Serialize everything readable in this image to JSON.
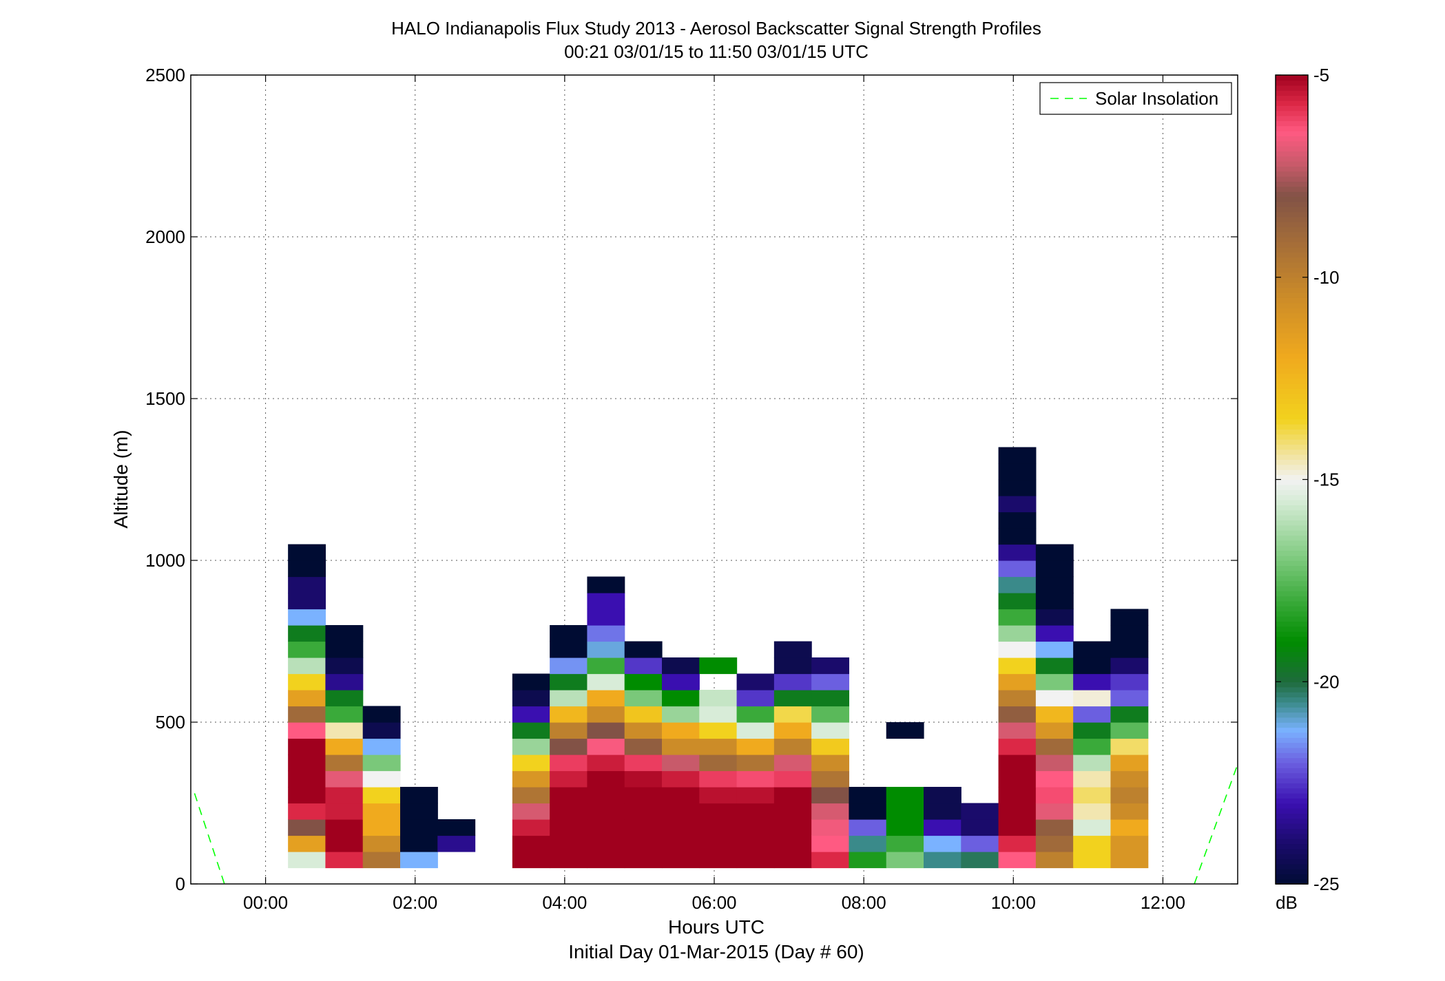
{
  "chart_data": {
    "type": "heatmap",
    "title": "HALO Indianapolis Flux Study 2013 - Aerosol Backscatter Signal Strength Profiles",
    "subtitle": "00:21 03/01/15 to 11:50 03/01/15  UTC",
    "xlabel": "Hours UTC",
    "xlabel2": "Initial Day 01-Mar-2015 (Day # 60)",
    "ylabel": "Altitude (m)",
    "xlim": [
      -1.0,
      13.0
    ],
    "ylim": [
      0,
      2500
    ],
    "x_ticks": [
      0,
      2,
      4,
      6,
      8,
      10,
      12
    ],
    "x_tick_labels": [
      "00:00",
      "02:00",
      "04:00",
      "06:00",
      "08:00",
      "10:00",
      "12:00"
    ],
    "y_ticks": [
      0,
      500,
      1000,
      1500,
      2000,
      2500
    ],
    "y_tick_labels": [
      "0",
      "500",
      "1000",
      "1500",
      "2000",
      "2500"
    ],
    "grid": true,
    "legend_position": "top-right",
    "legend": [
      {
        "name": "Solar Insolation",
        "color": "#00ff00",
        "style": "dashed"
      }
    ],
    "colorbar": {
      "label": "dB",
      "range": [
        -25,
        -5
      ],
      "ticks": [
        -5,
        -10,
        -15,
        -20,
        -25
      ],
      "tick_labels": [
        "-5",
        "-10",
        "-15",
        "-20",
        "-25"
      ],
      "stops": [
        {
          "value": -25,
          "color": "#000c33"
        },
        {
          "value": -24,
          "color": "#1a0b6b"
        },
        {
          "value": -23,
          "color": "#3a0fb0"
        },
        {
          "value": -22,
          "color": "#6b5fe0"
        },
        {
          "value": -21.2,
          "color": "#7ab2ff"
        },
        {
          "value": -20.5,
          "color": "#3a8a8a"
        },
        {
          "value": -20,
          "color": "#1e6b3c"
        },
        {
          "value": -19,
          "color": "#008c00"
        },
        {
          "value": -18,
          "color": "#3aaa3a"
        },
        {
          "value": -17,
          "color": "#7ac87a"
        },
        {
          "value": -15.5,
          "color": "#d8ecd8"
        },
        {
          "value": -15,
          "color": "#f2f2f2"
        },
        {
          "value": -14.5,
          "color": "#f2e6b0"
        },
        {
          "value": -13.5,
          "color": "#f2d21e"
        },
        {
          "value": -12,
          "color": "#f0aa1e"
        },
        {
          "value": -10.5,
          "color": "#cc8c28"
        },
        {
          "value": -9,
          "color": "#a06a3a"
        },
        {
          "value": -8,
          "color": "#825246"
        },
        {
          "value": -7.2,
          "color": "#c85a6a"
        },
        {
          "value": -6.4,
          "color": "#ff5a82"
        },
        {
          "value": -5.7,
          "color": "#dc2846"
        },
        {
          "value": -5,
          "color": "#a0001e"
        }
      ]
    },
    "solar_insolation": [
      {
        "x": [
          -0.95,
          -0.55
        ],
        "y": [
          280,
          0
        ]
      },
      {
        "x": [
          12.42,
          13.0
        ],
        "y": [
          0,
          370
        ]
      }
    ],
    "bin_width_hours": 0.5,
    "bin_height_m": 50,
    "profiles": [
      {
        "x": 0.55,
        "y0": 50,
        "values": [
          -15.5,
          -11.5,
          -8,
          -5.7,
          -5,
          -5,
          -5,
          -5,
          -6.4,
          -9,
          -11.5,
          -13.5,
          -16,
          -18,
          -19.5,
          -21.2,
          -24,
          -24,
          -25,
          -25
        ]
      },
      {
        "x": 1.05,
        "y0": 50,
        "values": [
          -5.7,
          -5,
          -5,
          -5.5,
          -5.5,
          -6.8,
          -9.5,
          -12,
          -14.5,
          -18,
          -19.5,
          -23.5,
          -24.5,
          -25,
          -25
        ]
      },
      {
        "x": 1.55,
        "y0": 50,
        "values": [
          -9.5,
          -10.5,
          -12,
          -12,
          -13.5,
          -15,
          -17,
          -21.2,
          -24.5,
          -25
        ]
      },
      {
        "x": 2.05,
        "y0": 50,
        "values": [
          -21.2,
          -25,
          -25,
          -25,
          -25
        ]
      },
      {
        "x": 2.55,
        "y0": 100,
        "values": [
          -23.5,
          -25
        ]
      },
      {
        "x": 3.55,
        "y0": 50,
        "values": [
          -5,
          -5,
          -5.5,
          -7,
          -9.5,
          -11,
          -13.5,
          -16.5,
          -19.5,
          -23,
          -24.5,
          -25
        ]
      },
      {
        "x": 4.05,
        "y0": 50,
        "values": [
          -5,
          -5,
          -5,
          -5,
          -5,
          -5.5,
          -6,
          -8,
          -10,
          -12.5,
          -16,
          -19.5,
          -21.5,
          -25,
          -25
        ]
      },
      {
        "x": 4.55,
        "y0": 50,
        "values": [
          -5,
          -5,
          -5,
          -5,
          -5,
          -5,
          -5.5,
          -6.5,
          -8,
          -10.5,
          -12,
          -15.5,
          -18,
          -21,
          -21.8,
          -23,
          -23,
          -25
        ]
      },
      {
        "x": 5.05,
        "y0": 50,
        "values": [
          -5,
          -5,
          -5,
          -5,
          -5,
          -5.2,
          -6,
          -8.5,
          -10.5,
          -13,
          -17,
          -19,
          -22.5,
          -25
        ]
      },
      {
        "x": 5.55,
        "y0": 50,
        "values": [
          -5,
          -5,
          -5,
          -5,
          -5,
          -5.5,
          -7.2,
          -10.5,
          -12,
          -16.5,
          -19,
          -23,
          -24.5
        ]
      },
      {
        "x": 6.05,
        "y0": 50,
        "values": [
          -5,
          -5,
          -5,
          -5,
          -5.3,
          -6,
          -9,
          -10.5,
          -13.5,
          -15.5,
          -15.8,
          null,
          -19
        ]
      },
      {
        "x": 6.55,
        "y0": 50,
        "values": [
          -5,
          -5,
          -5,
          -5,
          -5.3,
          -6.2,
          -9.5,
          -12,
          -15.5,
          -18,
          -22.5,
          -24
        ]
      },
      {
        "x": 7.05,
        "y0": 50,
        "values": [
          -5,
          -5,
          -5,
          -5,
          -5,
          -6,
          -7,
          -10,
          -12,
          -13.8,
          -19.5,
          -22.5,
          -24.5,
          -24.5
        ]
      },
      {
        "x": 7.55,
        "y0": 50,
        "values": [
          -5.7,
          -6.4,
          -6.6,
          -7,
          -8,
          -9.5,
          -10.5,
          -13.2,
          -15.5,
          -17.5,
          -19.5,
          -22,
          -24
        ]
      },
      {
        "x": 8.05,
        "y0": 50,
        "values": [
          -18.5,
          -20.5,
          -22,
          -25,
          -25
        ]
      },
      {
        "x": 8.55,
        "y0": 50,
        "values": [
          -17,
          -18,
          -19,
          -19,
          -19
        ],
        "extra": [
          {
            "y0": 450,
            "value": -25
          }
        ]
      },
      {
        "x": 9.05,
        "y0": 50,
        "values": [
          -20.5,
          -21.2,
          -23,
          -24.5,
          -24.5
        ]
      },
      {
        "x": 9.55,
        "y0": 50,
        "values": [
          -20.2,
          -22,
          -24,
          -24
        ]
      },
      {
        "x": 10.05,
        "y0": 50,
        "values": [
          -6.4,
          -5.7,
          -5,
          -5,
          -5,
          -5,
          -5,
          -5.7,
          -7,
          -8.5,
          -10,
          -11.5,
          -13.5,
          -15,
          -16.5,
          -18,
          -19.5,
          -20.5,
          -22,
          -23.5,
          -25,
          -25,
          -24,
          -25,
          -25,
          -25
        ]
      },
      {
        "x": 10.55,
        "y0": 50,
        "values": [
          -10,
          -9,
          -8.5,
          -6.8,
          -6.2,
          -6.4,
          -7.2,
          -9,
          -11,
          -12.5,
          -15,
          -17,
          -19.5,
          -21.2,
          -23,
          -24.5,
          -25,
          -25,
          -25,
          -25
        ]
      },
      {
        "x": 11.05,
        "y0": 50,
        "values": [
          -13.5,
          -13.5,
          -15.5,
          -14.5,
          -14,
          -14.5,
          -16,
          -18,
          -19.5,
          -22,
          -14.8,
          -23,
          -25,
          -25
        ]
      },
      {
        "x": 11.55,
        "y0": 50,
        "values": [
          -11,
          -11,
          -12,
          -10.5,
          -10,
          -10.5,
          -11.5,
          -14,
          -17.5,
          -19.5,
          -22,
          -22.5,
          -24,
          -25,
          -25,
          -25
        ]
      }
    ]
  }
}
